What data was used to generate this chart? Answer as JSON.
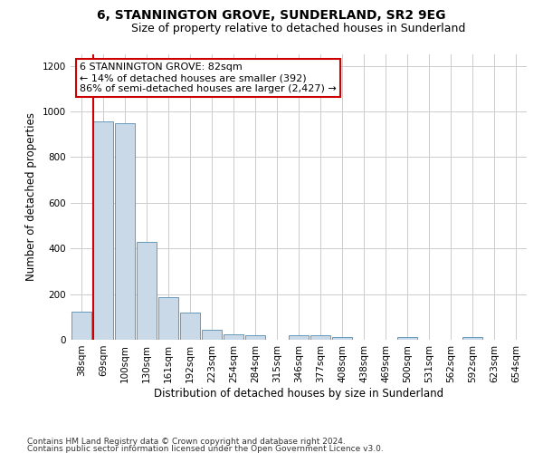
{
  "title": "6, STANNINGTON GROVE, SUNDERLAND, SR2 9EG",
  "subtitle": "Size of property relative to detached houses in Sunderland",
  "xlabel": "Distribution of detached houses by size in Sunderland",
  "ylabel": "Number of detached properties",
  "bar_labels": [
    "38sqm",
    "69sqm",
    "100sqm",
    "130sqm",
    "161sqm",
    "192sqm",
    "223sqm",
    "254sqm",
    "284sqm",
    "315sqm",
    "346sqm",
    "377sqm",
    "408sqm",
    "438sqm",
    "469sqm",
    "500sqm",
    "531sqm",
    "562sqm",
    "592sqm",
    "623sqm",
    "654sqm"
  ],
  "bar_values": [
    125,
    955,
    950,
    428,
    185,
    120,
    42,
    22,
    18,
    0,
    18,
    18,
    10,
    0,
    0,
    10,
    0,
    0,
    10,
    0,
    0
  ],
  "bar_color": "#c9d9e8",
  "bar_edge_color": "#6699bb",
  "vline_x_index": 1,
  "vline_color": "#cc0000",
  "annotation_text": "6 STANNINGTON GROVE: 82sqm\n← 14% of detached houses are smaller (392)\n86% of semi-detached houses are larger (2,427) →",
  "annotation_box_color": "#ffffff",
  "annotation_box_edge_color": "#cc0000",
  "ylim": [
    0,
    1250
  ],
  "yticks": [
    0,
    200,
    400,
    600,
    800,
    1000,
    1200
  ],
  "footnote1": "Contains HM Land Registry data © Crown copyright and database right 2024.",
  "footnote2": "Contains public sector information licensed under the Open Government Licence v3.0.",
  "background_color": "#ffffff",
  "grid_color": "#cccccc",
  "title_fontsize": 10,
  "subtitle_fontsize": 9,
  "axis_label_fontsize": 8.5,
  "tick_fontsize": 7.5,
  "annotation_fontsize": 8,
  "footnote_fontsize": 6.5
}
